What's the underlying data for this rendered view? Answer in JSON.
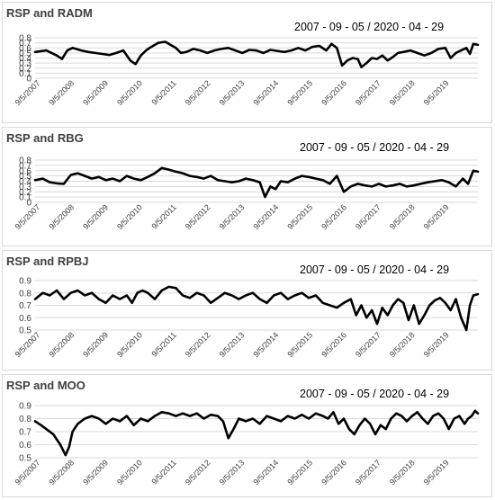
{
  "chart_data": [
    {
      "type": "line",
      "title": "RSP and RADM",
      "subtitle": "2007 - 09 - 05 / 2020 - 04 - 29",
      "yticks": [
        "0",
        "0.1",
        "0.2",
        "0.3",
        "0.4",
        "0.5",
        "0.6",
        "0.7",
        "0.8"
      ],
      "ylim": [
        0,
        0.8
      ],
      "xticks": [
        "9/5/2007",
        "9/5/2008",
        "9/5/2009",
        "9/5/2010",
        "9/5/2011",
        "9/5/2012",
        "9/5/2013",
        "9/5/2014",
        "9/5/2015",
        "9/5/2016",
        "9/5/2017",
        "9/5/2018",
        "9/5/2019"
      ],
      "xlim": [
        2007.68,
        2020.33
      ],
      "grid": true,
      "series": [
        {
          "x": [
            2007.68,
            2008.0,
            2008.15,
            2008.3,
            2008.45,
            2008.6,
            2008.75,
            2009.0,
            2009.2,
            2009.4,
            2009.6,
            2009.8,
            2010.0,
            2010.2,
            2010.4,
            2010.55,
            2010.7,
            2010.85,
            2011.0,
            2011.2,
            2011.4,
            2011.55,
            2011.7,
            2011.85,
            2012.0,
            2012.2,
            2012.4,
            2012.6,
            2012.8,
            2013.0,
            2013.2,
            2013.4,
            2013.6,
            2013.8,
            2014.0,
            2014.2,
            2014.4,
            2014.6,
            2014.8,
            2015.0,
            2015.2,
            2015.4,
            2015.6,
            2015.8,
            2016.0,
            2016.15,
            2016.3,
            2016.45,
            2016.6,
            2016.75,
            2016.9,
            2017.0,
            2017.15,
            2017.3,
            2017.45,
            2017.6,
            2017.75,
            2017.9,
            2018.05,
            2018.2,
            2018.4,
            2018.6,
            2018.8,
            2019.0,
            2019.2,
            2019.4,
            2019.55,
            2019.7,
            2019.85,
            2020.0,
            2020.1,
            2020.2,
            2020.33
          ],
          "y": [
            0.52,
            0.55,
            0.5,
            0.45,
            0.38,
            0.55,
            0.6,
            0.55,
            0.52,
            0.5,
            0.48,
            0.46,
            0.5,
            0.55,
            0.35,
            0.28,
            0.45,
            0.55,
            0.62,
            0.7,
            0.72,
            0.66,
            0.6,
            0.5,
            0.52,
            0.58,
            0.55,
            0.5,
            0.55,
            0.58,
            0.6,
            0.55,
            0.5,
            0.56,
            0.55,
            0.5,
            0.56,
            0.54,
            0.52,
            0.55,
            0.6,
            0.55,
            0.62,
            0.64,
            0.55,
            0.68,
            0.6,
            0.25,
            0.35,
            0.4,
            0.38,
            0.22,
            0.3,
            0.4,
            0.38,
            0.45,
            0.35,
            0.42,
            0.5,
            0.52,
            0.55,
            0.5,
            0.45,
            0.5,
            0.58,
            0.6,
            0.4,
            0.5,
            0.55,
            0.6,
            0.48,
            0.68,
            0.66
          ]
        }
      ]
    },
    {
      "type": "line",
      "title": "RSP and RBG",
      "subtitle": "2007 - 09 - 05 / 2020 - 04 - 29",
      "yticks": [
        "0",
        "0.1",
        "0.2",
        "0.3",
        "0.4",
        "0.5",
        "0.6",
        "0.7",
        "0.8"
      ],
      "ylim": [
        0,
        0.8
      ],
      "xticks": [
        "9/5/2007",
        "9/5/2008",
        "9/5/2009",
        "9/5/2010",
        "9/5/2011",
        "9/5/2012",
        "9/5/2013",
        "9/5/2014",
        "9/5/2015",
        "9/5/2016",
        "9/5/2017",
        "9/5/2018",
        "9/5/2019"
      ],
      "xlim": [
        2007.68,
        2020.33
      ],
      "grid": true,
      "series": [
        {
          "x": [
            2007.68,
            2007.9,
            2008.1,
            2008.3,
            2008.5,
            2008.7,
            2008.9,
            2009.1,
            2009.3,
            2009.5,
            2009.7,
            2009.9,
            2010.1,
            2010.3,
            2010.5,
            2010.7,
            2010.9,
            2011.1,
            2011.3,
            2011.5,
            2011.7,
            2011.9,
            2012.1,
            2012.3,
            2012.5,
            2012.7,
            2012.9,
            2013.1,
            2013.3,
            2013.5,
            2013.7,
            2013.9,
            2014.1,
            2014.25,
            2014.4,
            2014.55,
            2014.7,
            2014.9,
            2015.1,
            2015.3,
            2015.5,
            2015.7,
            2015.9,
            2016.1,
            2016.3,
            2016.5,
            2016.7,
            2016.9,
            2017.1,
            2017.3,
            2017.5,
            2017.7,
            2017.9,
            2018.1,
            2018.3,
            2018.5,
            2018.7,
            2018.9,
            2019.1,
            2019.3,
            2019.5,
            2019.7,
            2019.9,
            2020.05,
            2020.2,
            2020.33
          ],
          "y": [
            0.42,
            0.45,
            0.38,
            0.36,
            0.35,
            0.52,
            0.55,
            0.5,
            0.45,
            0.48,
            0.42,
            0.45,
            0.4,
            0.5,
            0.45,
            0.42,
            0.48,
            0.55,
            0.65,
            0.62,
            0.58,
            0.55,
            0.5,
            0.48,
            0.45,
            0.5,
            0.42,
            0.4,
            0.38,
            0.4,
            0.45,
            0.42,
            0.38,
            0.1,
            0.3,
            0.25,
            0.4,
            0.38,
            0.45,
            0.5,
            0.48,
            0.45,
            0.42,
            0.35,
            0.5,
            0.2,
            0.3,
            0.35,
            0.32,
            0.3,
            0.35,
            0.3,
            0.32,
            0.35,
            0.3,
            0.32,
            0.35,
            0.38,
            0.4,
            0.42,
            0.38,
            0.3,
            0.45,
            0.35,
            0.6,
            0.58
          ]
        }
      ]
    },
    {
      "type": "line",
      "title": "RSP and RPBJ",
      "subtitle": "2007 - 09 - 05 / 2020 - 04 - 29",
      "yticks": [
        "0.5",
        "0.6",
        "0.7",
        "0.8",
        "0.9"
      ],
      "ylim": [
        0.5,
        0.9
      ],
      "xticks": [
        "9/5/2007",
        "9/5/2008",
        "9/5/2009",
        "9/5/2010",
        "9/5/2011",
        "9/5/2012",
        "9/5/2013",
        "9/5/2014",
        "9/5/2015",
        "9/5/2016",
        "9/5/2017",
        "9/5/2018",
        "9/5/2019"
      ],
      "xlim": [
        2007.68,
        2020.33
      ],
      "grid": true,
      "series": [
        {
          "x": [
            2007.68,
            2007.9,
            2008.1,
            2008.3,
            2008.5,
            2008.7,
            2008.9,
            2009.1,
            2009.3,
            2009.5,
            2009.7,
            2009.9,
            2010.1,
            2010.3,
            2010.45,
            2010.6,
            2010.75,
            2010.9,
            2011.1,
            2011.3,
            2011.5,
            2011.7,
            2011.9,
            2012.1,
            2012.3,
            2012.5,
            2012.7,
            2012.9,
            2013.1,
            2013.3,
            2013.5,
            2013.7,
            2013.9,
            2014.1,
            2014.3,
            2014.5,
            2014.7,
            2014.9,
            2015.1,
            2015.3,
            2015.5,
            2015.7,
            2015.9,
            2016.1,
            2016.3,
            2016.5,
            2016.7,
            2016.85,
            2017.0,
            2017.15,
            2017.3,
            2017.45,
            2017.6,
            2017.75,
            2017.9,
            2018.05,
            2018.2,
            2018.35,
            2018.5,
            2018.65,
            2018.8,
            2018.95,
            2019.1,
            2019.25,
            2019.4,
            2019.55,
            2019.7,
            2019.85,
            2020.0,
            2020.1,
            2020.2,
            2020.33
          ],
          "y": [
            0.75,
            0.8,
            0.78,
            0.82,
            0.75,
            0.8,
            0.82,
            0.78,
            0.8,
            0.75,
            0.72,
            0.78,
            0.75,
            0.78,
            0.72,
            0.8,
            0.82,
            0.8,
            0.75,
            0.82,
            0.85,
            0.84,
            0.78,
            0.76,
            0.8,
            0.78,
            0.72,
            0.76,
            0.8,
            0.78,
            0.75,
            0.78,
            0.8,
            0.75,
            0.72,
            0.78,
            0.8,
            0.75,
            0.78,
            0.8,
            0.76,
            0.78,
            0.72,
            0.7,
            0.68,
            0.72,
            0.75,
            0.62,
            0.7,
            0.6,
            0.66,
            0.55,
            0.68,
            0.62,
            0.7,
            0.75,
            0.72,
            0.58,
            0.7,
            0.55,
            0.62,
            0.7,
            0.74,
            0.76,
            0.72,
            0.66,
            0.75,
            0.6,
            0.5,
            0.7,
            0.78,
            0.79
          ]
        }
      ]
    },
    {
      "type": "line",
      "title": "RSP and MOO",
      "subtitle": "2007 - 09 - 05 / 2020 - 04 - 29",
      "yticks": [
        "0.5",
        "0.6",
        "0.7",
        "0.8",
        "0.9"
      ],
      "ylim": [
        0.5,
        0.9
      ],
      "xticks": [
        "9/5/2007",
        "9/5/2008",
        "9/5/2009",
        "9/5/2010",
        "9/5/2011",
        "9/5/2012",
        "9/5/2013",
        "9/5/2014",
        "9/5/2015",
        "9/5/2016",
        "9/5/2017",
        "9/5/2018",
        "9/5/2019"
      ],
      "xlim": [
        2007.68,
        2020.33
      ],
      "grid": true,
      "series": [
        {
          "x": [
            2007.68,
            2007.85,
            2008.0,
            2008.2,
            2008.4,
            2008.55,
            2008.65,
            2008.75,
            2008.9,
            2009.1,
            2009.3,
            2009.5,
            2009.7,
            2009.9,
            2010.1,
            2010.3,
            2010.5,
            2010.7,
            2010.9,
            2011.1,
            2011.3,
            2011.5,
            2011.7,
            2011.9,
            2012.1,
            2012.3,
            2012.5,
            2012.7,
            2012.9,
            2013.05,
            2013.2,
            2013.35,
            2013.5,
            2013.7,
            2013.9,
            2014.1,
            2014.3,
            2014.5,
            2014.7,
            2014.9,
            2015.1,
            2015.3,
            2015.5,
            2015.7,
            2015.9,
            2016.05,
            2016.2,
            2016.35,
            2016.5,
            2016.65,
            2016.8,
            2016.95,
            2017.1,
            2017.25,
            2017.4,
            2017.55,
            2017.7,
            2017.85,
            2018.0,
            2018.15,
            2018.3,
            2018.45,
            2018.6,
            2018.75,
            2018.9,
            2019.05,
            2019.2,
            2019.35,
            2019.5,
            2019.65,
            2019.8,
            2019.95,
            2020.05,
            2020.15,
            2020.25,
            2020.33
          ],
          "y": [
            0.78,
            0.75,
            0.72,
            0.68,
            0.6,
            0.52,
            0.58,
            0.7,
            0.76,
            0.8,
            0.82,
            0.8,
            0.76,
            0.8,
            0.78,
            0.82,
            0.75,
            0.8,
            0.78,
            0.82,
            0.85,
            0.84,
            0.82,
            0.84,
            0.82,
            0.84,
            0.8,
            0.83,
            0.82,
            0.78,
            0.65,
            0.72,
            0.8,
            0.78,
            0.8,
            0.76,
            0.82,
            0.8,
            0.78,
            0.82,
            0.8,
            0.83,
            0.8,
            0.84,
            0.82,
            0.8,
            0.85,
            0.76,
            0.8,
            0.72,
            0.68,
            0.75,
            0.8,
            0.76,
            0.68,
            0.75,
            0.72,
            0.8,
            0.84,
            0.82,
            0.78,
            0.82,
            0.85,
            0.8,
            0.76,
            0.82,
            0.84,
            0.8,
            0.72,
            0.8,
            0.82,
            0.76,
            0.8,
            0.82,
            0.86,
            0.84
          ]
        }
      ]
    }
  ]
}
